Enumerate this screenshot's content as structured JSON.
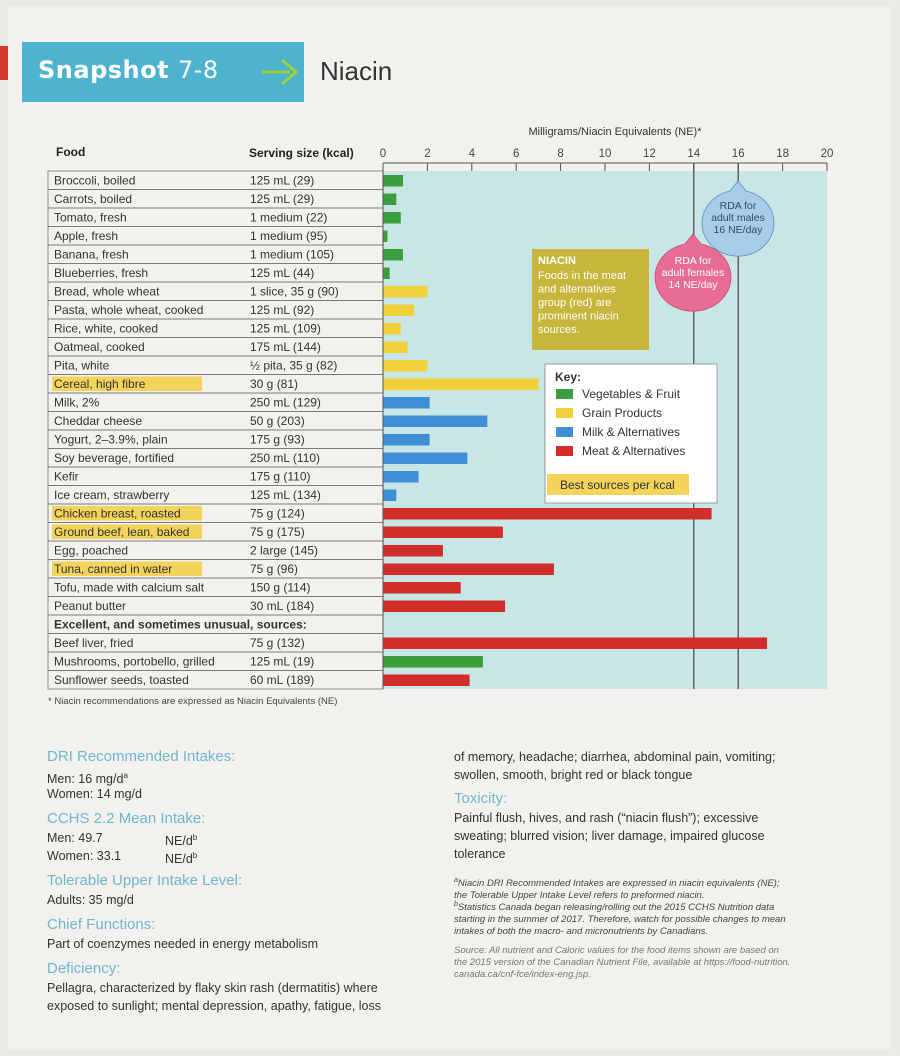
{
  "header": {
    "snapshot_label": "Snapshot",
    "snapshot_number": "7-8",
    "title": "Niacin"
  },
  "columns": {
    "food": "Food",
    "serving": "Serving size (kcal)"
  },
  "chart_data": {
    "type": "bar",
    "orientation": "horizontal",
    "xlabel": "Milligrams/Niacin Equivalents (NE)*",
    "xlim": [
      0,
      20
    ],
    "xticks": [
      0,
      2,
      4,
      6,
      8,
      10,
      12,
      14,
      16,
      18,
      20
    ],
    "rows": [
      {
        "food": "Broccoli, boiled",
        "serving": "125 mL (29)",
        "value": 0.9,
        "group": "veg",
        "best": false
      },
      {
        "food": "Carrots, boiled",
        "serving": "125 mL (29)",
        "value": 0.6,
        "group": "veg",
        "best": false
      },
      {
        "food": "Tomato, fresh",
        "serving": "1 medium (22)",
        "value": 0.8,
        "group": "veg",
        "best": false
      },
      {
        "food": "Apple, fresh",
        "serving": "1 medium (95)",
        "value": 0.2,
        "group": "veg",
        "best": false
      },
      {
        "food": "Banana, fresh",
        "serving": "1 medium (105)",
        "value": 0.9,
        "group": "veg",
        "best": false
      },
      {
        "food": "Blueberries, fresh",
        "serving": "125 mL (44)",
        "value": 0.3,
        "group": "veg",
        "best": false
      },
      {
        "food": "Bread, whole wheat",
        "serving": "1 slice, 35 g (90)",
        "value": 2.0,
        "group": "grain",
        "best": false
      },
      {
        "food": "Pasta, whole wheat, cooked",
        "serving": "125 mL (92)",
        "value": 1.4,
        "group": "grain",
        "best": false
      },
      {
        "food": "Rice, white, cooked",
        "serving": "125 mL (109)",
        "value": 0.8,
        "group": "grain",
        "best": false
      },
      {
        "food": "Oatmeal, cooked",
        "serving": "175 mL (144)",
        "value": 1.1,
        "group": "grain",
        "best": false
      },
      {
        "food": "Pita, white",
        "serving": "½ pita, 35 g (82)",
        "value": 2.0,
        "group": "grain",
        "best": false
      },
      {
        "food": "Cereal, high fibre",
        "serving": "30 g (81)",
        "value": 7.0,
        "group": "grain",
        "best": true
      },
      {
        "food": "Milk, 2%",
        "serving": "250 mL (129)",
        "value": 2.1,
        "group": "milk",
        "best": false
      },
      {
        "food": "Cheddar cheese",
        "serving": "50 g (203)",
        "value": 4.7,
        "group": "milk",
        "best": false
      },
      {
        "food": "Yogurt, 2–3.9%, plain",
        "serving": "175 g (93)",
        "value": 2.1,
        "group": "milk",
        "best": false
      },
      {
        "food": "Soy beverage, fortified",
        "serving": "250 mL (110)",
        "value": 3.8,
        "group": "milk",
        "best": false
      },
      {
        "food": "Kefir",
        "serving": "175 g (110)",
        "value": 1.6,
        "group": "milk",
        "best": false
      },
      {
        "food": "Ice cream, strawberry",
        "serving": "125 mL (134)",
        "value": 0.6,
        "group": "milk",
        "best": false
      },
      {
        "food": "Chicken breast, roasted",
        "serving": "75 g (124)",
        "value": 14.8,
        "group": "meat",
        "best": true
      },
      {
        "food": "Ground beef, lean, baked",
        "serving": "75 g (175)",
        "value": 5.4,
        "group": "meat",
        "best": true
      },
      {
        "food": "Egg, poached",
        "serving": "2 large (145)",
        "value": 2.7,
        "group": "meat",
        "best": false
      },
      {
        "food": "Tuna, canned in water",
        "serving": "75 g (96)",
        "value": 7.7,
        "group": "meat",
        "best": true
      },
      {
        "food": "Tofu, made with calcium salt",
        "serving": "150 g (114)",
        "value": 3.5,
        "group": "meat",
        "best": false
      },
      {
        "food": "Peanut butter",
        "serving": "30 mL (184)",
        "value": 5.5,
        "group": "meat",
        "best": false
      },
      {
        "food": "Excellent, and sometimes unusual, sources:",
        "serving": "",
        "value": null,
        "group": "header",
        "best": false
      },
      {
        "food": "Beef liver, fried",
        "serving": "75 g (132)",
        "value": 17.3,
        "group": "meat",
        "best": false
      },
      {
        "food": "Mushrooms, portobello, grilled",
        "serving": "125 mL (19)",
        "value": 4.5,
        "group": "veg",
        "best": false
      },
      {
        "food": "Sunflower seeds, toasted",
        "serving": "60 mL (189)",
        "value": 3.9,
        "group": "meat",
        "best": false
      }
    ],
    "reference_lines": [
      {
        "value": 14,
        "label": "RDA for adult females 14 NE/day"
      },
      {
        "value": 16,
        "label": "RDA for adult males 16 NE/day"
      }
    ],
    "legend": {
      "title": "Key:",
      "items": [
        {
          "label": "Vegetables & Fruit",
          "color": "#3a9e3c"
        },
        {
          "label": "Grain Products",
          "color": "#f0d13a"
        },
        {
          "label": "Milk & Alternatives",
          "color": "#3f8fd6"
        },
        {
          "label": "Meat & Alternatives",
          "color": "#d12d2a"
        }
      ],
      "best_label": "Best sources per kcal",
      "position": "right-middle"
    },
    "callout": {
      "title": "NIACIN",
      "text": [
        "Foods in the meat",
        "and alternatives",
        "group (red) are",
        "prominent niacin",
        "sources."
      ]
    },
    "rda_male": {
      "lines": [
        "RDA for",
        "adult males",
        "16 NE/day"
      ]
    },
    "rda_female": {
      "lines": [
        "RDA for",
        "adult females",
        "14 NE/day"
      ]
    }
  },
  "colors": {
    "veg": "#3a9e3c",
    "grain": "#f0d13a",
    "milk": "#3f8fd6",
    "meat": "#d12d2a",
    "plot_bg": "#c8e6e6",
    "highlight": "#f3d35a",
    "banner": "#4db3cf"
  },
  "footnote": "* Niacin recommendations are expressed as Niacin Equivalents (NE)",
  "info": {
    "dri_heading": "DRI Recommended Intakes:",
    "dri_men": "Men: 16 mg/d",
    "dri_women": "Women: 14 mg/d",
    "cchs_heading": "CCHS 2.2 Mean Intake:",
    "cchs_men_label": "Men: 49.7",
    "cchs_men_unit": "NE/d",
    "cchs_women_label": "Women: 33.1",
    "cchs_women_unit": "NE/d",
    "ul_heading": "Tolerable Upper Intake Level:",
    "ul_text": "Adults: 35 mg/d",
    "functions_heading": "Chief Functions:",
    "functions_text": "Part of coenzymes needed in energy metabolism",
    "deficiency_heading": "Deficiency:",
    "deficiency_text1": "Pellagra, characterized by flaky skin rash (dermatitis) where",
    "deficiency_text2": "exposed to sunlight; mental depression, apathy, fatigue, loss",
    "deficiency_text3": "of memory, headache; diarrhea, abdominal pain, vomiting;",
    "deficiency_text4": "swollen, smooth, bright red or black tongue",
    "toxicity_heading": "Toxicity:",
    "toxicity_text1": "Painful flush, hives, and rash (“niacin flush”); excessive",
    "toxicity_text2": "sweating; blurred vision; liver damage, impaired glucose",
    "toxicity_text3": "tolerance",
    "note_a1": "Niacin DRI Recommended Intakes are expressed in niacin equivalents (NE);",
    "note_a2": "the Tolerable Upper Intake Level refers to preformed niacin.",
    "note_b1": "Statistics Canada began releasing/rolling out the 2015 CCHS Nutrition data",
    "note_b2": "starting in the summer of 2017. Therefore, watch for possible changes to mean",
    "note_b3": "intakes of both the macro- and micronutrients by Canadians.",
    "source1": "Source: All nutrient and Caloric values for the food items shown are based on",
    "source2": "the 2015 version of the Canadian Nutrient File, available at https://food-nutrition.",
    "source3": "canada.ca/cnf-fce/index-eng.jsp."
  }
}
